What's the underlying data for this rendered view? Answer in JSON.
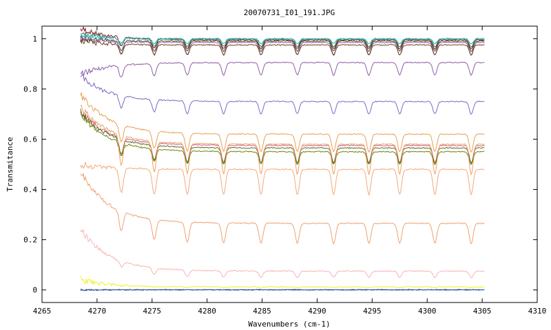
{
  "chart_data": {
    "type": "line",
    "title": "20070731_I01_191.JPG",
    "xlabel": "Wavenumbers (cm-1)",
    "ylabel": "Transmitance",
    "xlim": [
      4265,
      4310
    ],
    "ylim": [
      -0.05,
      1.05
    ],
    "xticks": [
      4265,
      4270,
      4275,
      4280,
      4285,
      4290,
      4295,
      4300,
      4305,
      4310
    ],
    "yticks": [
      0,
      0.2,
      0.4,
      0.6,
      0.8,
      1
    ],
    "ytick_labels": [
      "0",
      "0.2",
      "0.4",
      "0.6",
      "0.8",
      "1"
    ],
    "grid": false,
    "x_start": 4268.5,
    "x_end": 4305.2,
    "absorption_lines": [
      4272.2,
      4275.2,
      4278.2,
      4281.5,
      4284.9,
      4288.2,
      4291.5,
      4294.7,
      4297.5,
      4300.7,
      4304.0
    ],
    "series": [
      {
        "color": "#8b1a2b",
        "level": 0.995,
        "start": 1.04,
        "depth": 0.035
      },
      {
        "color": "#2e8b57",
        "level": 0.998,
        "start": 1.02,
        "depth": 0.03
      },
      {
        "color": "#20b2aa",
        "level": 1.0,
        "start": 1.01,
        "depth": 0.02
      },
      {
        "color": "#4b5320",
        "level": 0.99,
        "start": 1.0,
        "depth": 0.04
      },
      {
        "color": "#9b59b6",
        "level": 0.985,
        "start": 1.0,
        "depth": 0.05
      },
      {
        "color": "#6b4423",
        "level": 0.975,
        "start": 0.99,
        "depth": 0.04
      },
      {
        "color": "#8e5ca8",
        "level": 0.905,
        "start": 0.86,
        "depth": 0.05
      },
      {
        "color": "#7b68c8",
        "level": 0.75,
        "start": 0.85,
        "depth": 0.05
      },
      {
        "color": "#e8a050",
        "level": 0.62,
        "start": 0.78,
        "depth": 0.07
      },
      {
        "color": "#d4608a",
        "level": 0.575,
        "start": 0.71,
        "depth": 0.07
      },
      {
        "color": "#556b2f",
        "level": 0.565,
        "start": 0.71,
        "depth": 0.06
      },
      {
        "color": "#708000",
        "level": 0.55,
        "start": 0.7,
        "depth": 0.05
      },
      {
        "color": "#f0a060",
        "level": 0.58,
        "start": 0.73,
        "depth": 0.12
      },
      {
        "color": "#f5a87a",
        "level": 0.48,
        "start": 0.5,
        "depth": 0.1
      },
      {
        "color": "#f0a070",
        "level": 0.265,
        "start": 0.47,
        "depth": 0.08
      },
      {
        "color": "#f7b3b3",
        "level": 0.075,
        "start": 0.245,
        "depth": 0.025
      },
      {
        "color": "#f0f020",
        "level": 0.012,
        "start": 0.04,
        "depth": 0.003
      },
      {
        "color": "#333333",
        "level": 0.001,
        "start": 0.0,
        "depth": 0.0
      },
      {
        "color": "#1f5fbf",
        "level": 0.0,
        "start": 0.0,
        "depth": 0.0
      }
    ]
  }
}
